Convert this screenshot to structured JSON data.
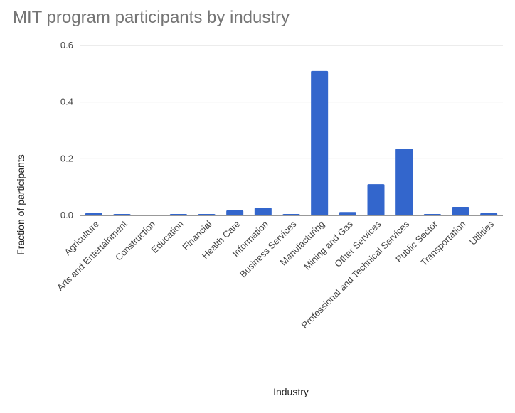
{
  "chart_data": {
    "type": "bar",
    "title": "MIT program participants by industry",
    "xlabel": "Industry",
    "ylabel": "Fraction of participants",
    "ylim": [
      0,
      0.6
    ],
    "yticks": [
      "0.0",
      "0.2",
      "0.4",
      "0.6"
    ],
    "grid": true,
    "legend": "none",
    "bar_color": "#3366cc",
    "categories": [
      "Agriculture",
      "Arts and Entertainment",
      "Construction",
      "Education",
      "Financial",
      "Health Care",
      "Information",
      "Business Services",
      "Manufacturing",
      "Mining and Gas",
      "Other Services",
      "Professional and Technical Services",
      "Public Sector",
      "Transportation",
      "Utilities"
    ],
    "values": [
      0.008,
      0.005,
      0.002,
      0.005,
      0.005,
      0.018,
      0.027,
      0.005,
      0.51,
      0.012,
      0.11,
      0.235,
      0.005,
      0.03,
      0.008
    ]
  }
}
